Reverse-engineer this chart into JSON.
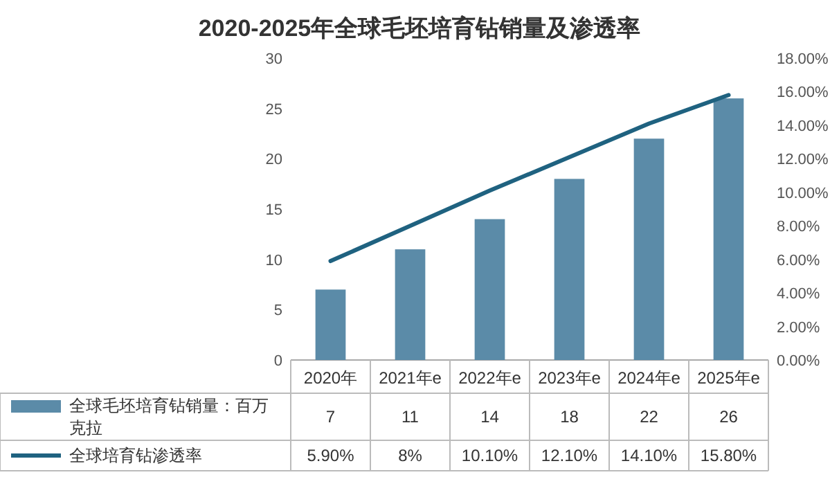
{
  "chart_data": {
    "type": "bar",
    "title": "2020-2025年全球毛坯培育钻销量及渗透率",
    "categories": [
      "2020年",
      "2021年e",
      "2022年e",
      "2023年e",
      "2024年e",
      "2025年e"
    ],
    "series": [
      {
        "name": "全球毛坯培育钻销量：百万克拉",
        "color": "#5b8ba8",
        "values": [
          7,
          11,
          14,
          18,
          22,
          26
        ],
        "value_labels": [
          "7",
          "11",
          "14",
          "18",
          "22",
          "26"
        ]
      },
      {
        "name": "全球培育钻渗透率",
        "type": "line",
        "axis": "y2",
        "color": "#1f6280",
        "values": [
          5.9,
          8,
          10.1,
          12.1,
          14.1,
          15.8
        ],
        "value_labels": [
          "5.90%",
          "8%",
          "10.10%",
          "12.10%",
          "14.10%",
          "15.80%"
        ]
      }
    ],
    "ylim": [
      0,
      30
    ],
    "yticks": [
      0,
      5,
      10,
      15,
      20,
      25,
      30
    ],
    "y2lim": [
      0,
      18
    ],
    "y2ticks": [
      {
        "value": 0,
        "label": "0.00%"
      },
      {
        "value": 2,
        "label": "2.00%"
      },
      {
        "value": 4,
        "label": "4.00%"
      },
      {
        "value": 6,
        "label": "6.00%"
      },
      {
        "value": 8,
        "label": "8.00%"
      },
      {
        "value": 10,
        "label": "10.00%"
      },
      {
        "value": 12,
        "label": "12.00%"
      },
      {
        "value": 14,
        "label": "14.00%"
      },
      {
        "value": 16,
        "label": "16.00%"
      },
      {
        "value": 18,
        "label": "18.00%"
      }
    ],
    "legend": "bottom"
  }
}
